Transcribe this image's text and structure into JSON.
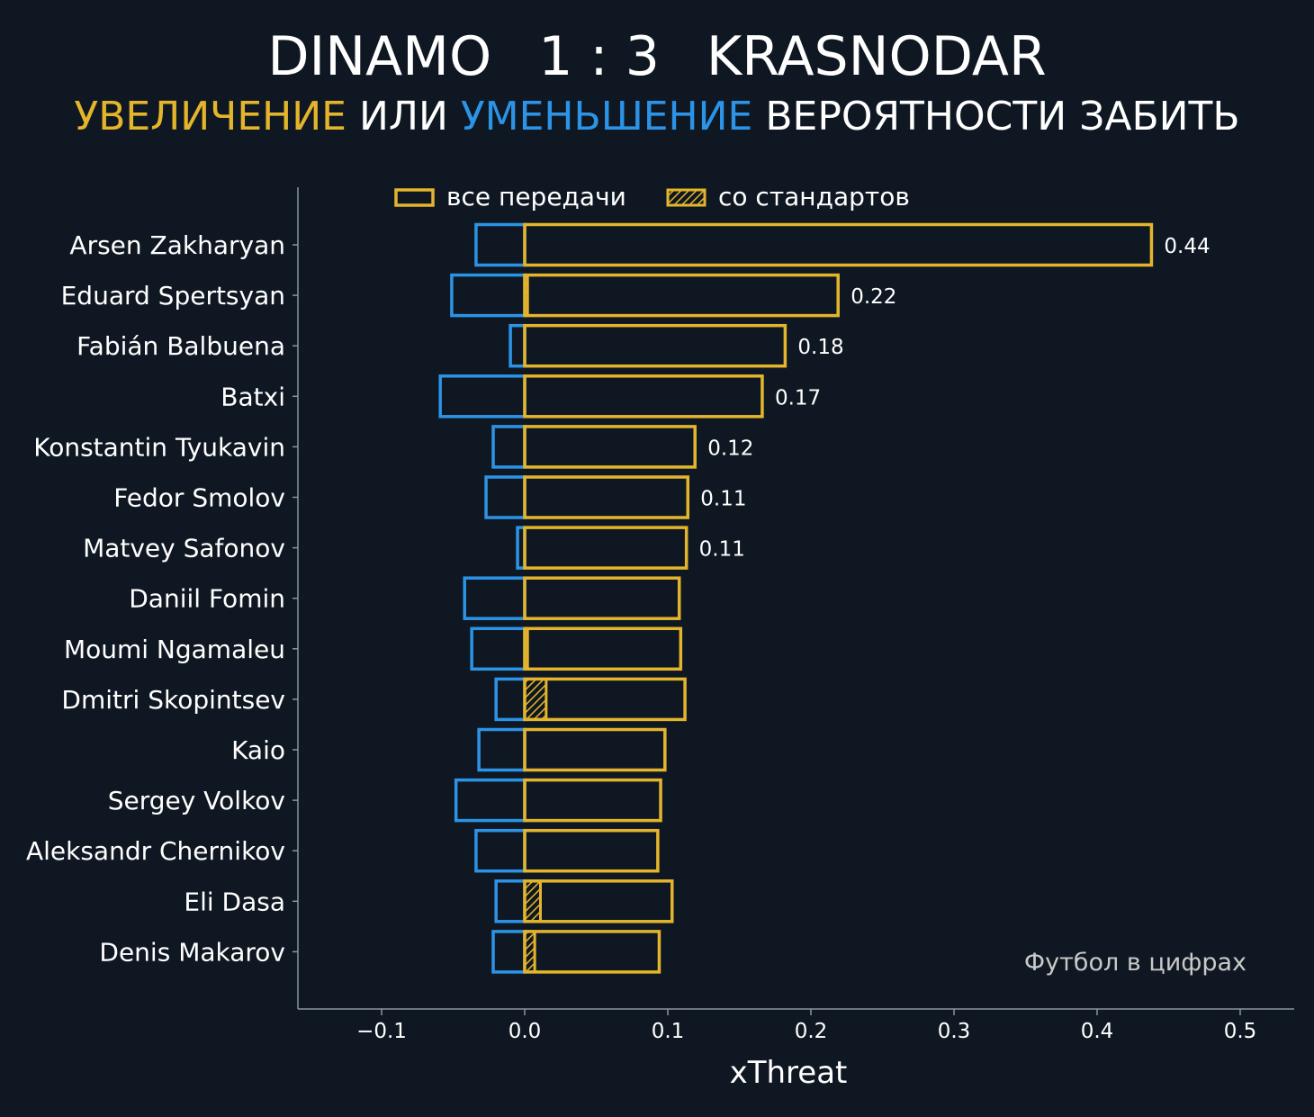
{
  "header": {
    "home_team": "DINAMO",
    "score": "1 : 3",
    "away_team": "KRASNODAR",
    "subtitle_part1": "УВЕЛИЧЕНИЕ",
    "subtitle_part2": " ИЛИ ",
    "subtitle_part3": "УМЕНЬШЕНИЕ",
    "subtitle_part4": " ВЕРОЯТНОСТИ ЗАБИТЬ"
  },
  "colors": {
    "background": "#0f1822",
    "increase": "#e4b52c",
    "decrease": "#2c93e6",
    "axis": "#8a959c",
    "text": "#ffffff",
    "watermark": "#c9c9c9"
  },
  "watermark": "Футбол в цифрах",
  "chart_data": {
    "type": "bar",
    "orientation": "horizontal",
    "xlabel": "xThreat",
    "xlim": [
      -0.16,
      0.535
    ],
    "xticks": [
      -0.1,
      0.0,
      0.1,
      0.2,
      0.3,
      0.4,
      0.5
    ],
    "xtick_labels": [
      "−0.1",
      "0.0",
      "0.1",
      "0.2",
      "0.3",
      "0.4",
      "0.5"
    ],
    "legend": [
      {
        "label": "все передачи",
        "style": "outline"
      },
      {
        "label": "со стандартов",
        "style": "hatched"
      }
    ],
    "categories": [
      "Arsen Zakharyan",
      "Eduard Spertsyan",
      "Fabián Balbuena",
      "Batxi",
      "Konstantin Tyukavin",
      "Fedor Smolov",
      "Matvey Safonov",
      "Daniil Fomin",
      "Moumi Ngamaleu",
      "Dmitri Skopintsev",
      "Kaio",
      "Sergey Volkov",
      "Aleksandr Chernikov",
      "Eli Dasa",
      "Denis Makarov"
    ],
    "series": [
      {
        "name": "positive xThreat (все передачи)",
        "values": [
          0.438,
          0.219,
          0.182,
          0.166,
          0.119,
          0.114,
          0.113,
          0.108,
          0.109,
          0.112,
          0.098,
          0.095,
          0.093,
          0.103,
          0.094
        ]
      },
      {
        "name": "negative xThreat (все передачи)",
        "values": [
          -0.034,
          -0.051,
          -0.01,
          -0.059,
          -0.022,
          -0.027,
          -0.005,
          -0.042,
          -0.037,
          -0.02,
          -0.032,
          -0.048,
          -0.034,
          -0.02,
          -0.022
        ]
      },
      {
        "name": "positive xThreat (со стандартов)",
        "values": [
          0.0,
          0.002,
          0.0,
          0.0,
          0.0,
          0.0,
          0.0,
          0.0,
          0.002,
          0.015,
          0.0,
          0.0,
          0.0,
          0.011,
          0.007
        ]
      }
    ],
    "data_labels": [
      "0.44",
      "0.22",
      "0.18",
      "0.17",
      "0.12",
      "0.11",
      "0.11",
      "",
      "",
      "",
      "",
      "",
      "",
      "",
      ""
    ]
  }
}
